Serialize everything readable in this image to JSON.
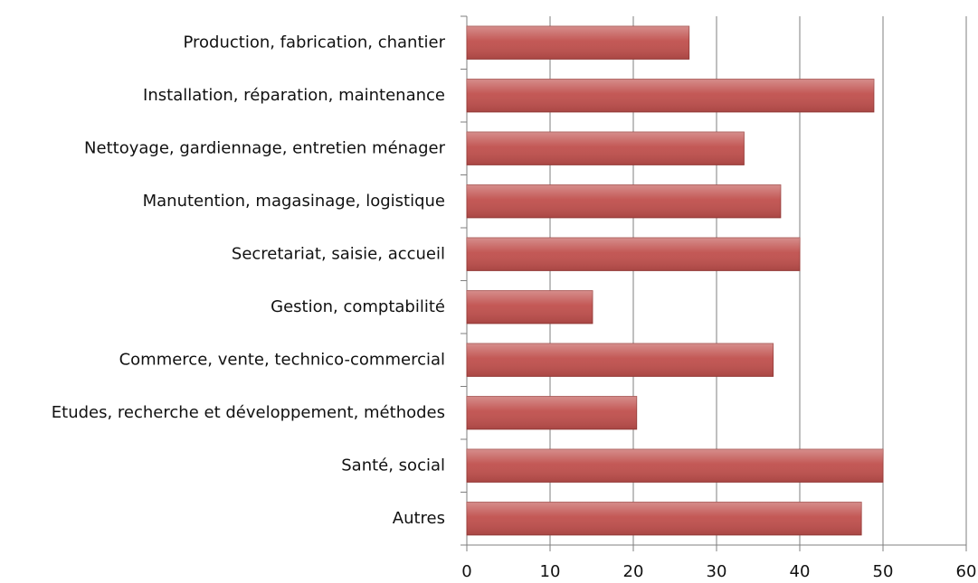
{
  "chart_data": {
    "type": "bar",
    "orientation": "horizontal",
    "categories": [
      "Production, fabrication, chantier",
      "Installation, réparation, maintenance",
      "Nettoyage, gardiennage, entretien ménager",
      "Manutention, magasinage, logistique",
      "Secretariat, saisie, accueil",
      "Gestion, comptabilité",
      "Commerce, vente, technico-commercial",
      "Etudes, recherche et développement, méthodes",
      "Santé, social",
      "Autres"
    ],
    "values": [
      26.7,
      48.9,
      33.3,
      37.7,
      40,
      15.1,
      36.8,
      20.4,
      50,
      47.4
    ],
    "color": "#c0504d",
    "xlim": [
      0,
      60
    ],
    "xticks": [
      0,
      10,
      20,
      30,
      40,
      50,
      60
    ],
    "grid": true
  }
}
